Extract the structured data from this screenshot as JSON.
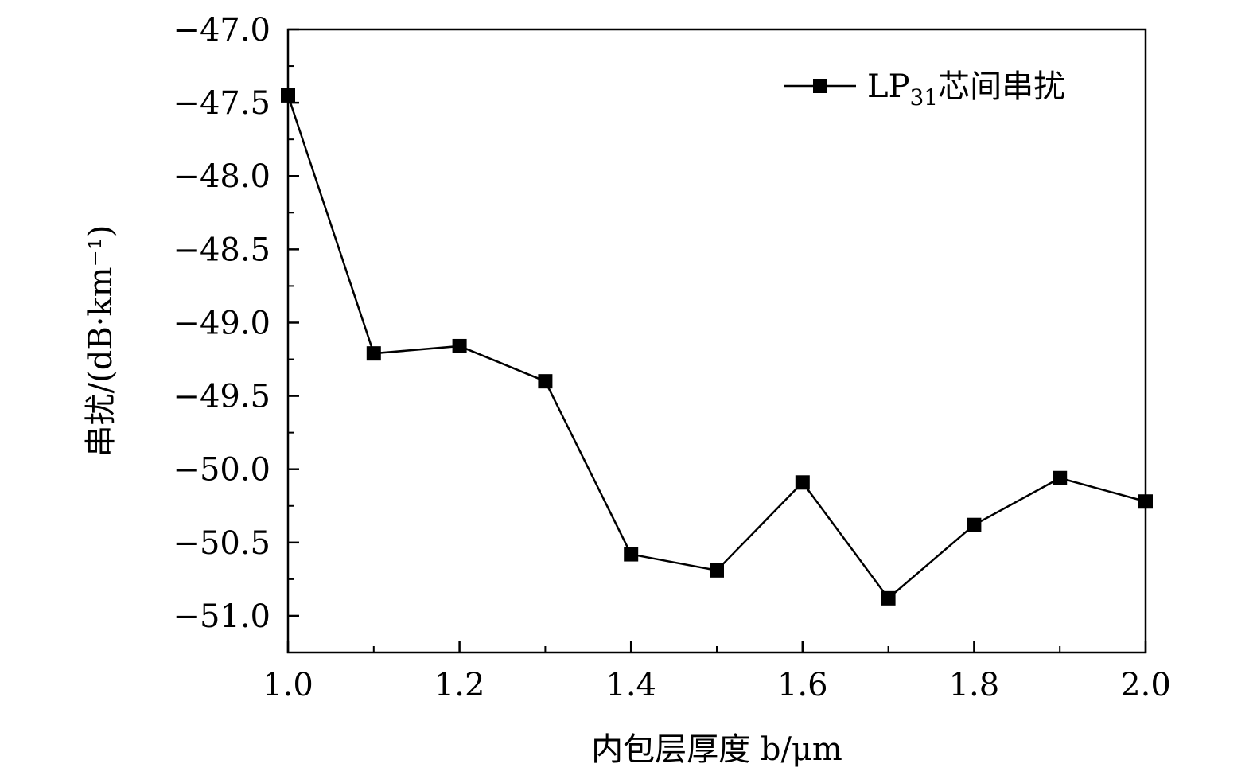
{
  "chart_data": {
    "type": "line",
    "title": "",
    "xlabel": "内包层厚度 b/μm",
    "ylabel": "串扰/(dB·km⁻¹)",
    "xlim": [
      1.0,
      2.0
    ],
    "ylim": [
      -51.25,
      -47.0
    ],
    "x_ticks": [
      1.0,
      1.2,
      1.4,
      1.6,
      1.8,
      2.0
    ],
    "x_tick_labels": [
      "1.0",
      "1.2",
      "1.4",
      "1.6",
      "1.8",
      "2.0"
    ],
    "y_ticks": [
      -47.0,
      -47.5,
      -48.0,
      -48.5,
      -49.0,
      -49.5,
      -50.0,
      -50.5,
      -51.0
    ],
    "y_tick_labels": [
      "−47.0",
      "−47.5",
      "−48.0",
      "−48.5",
      "−49.0",
      "−49.5",
      "−50.0",
      "−50.5",
      "−51.0"
    ],
    "grid": false,
    "legend_position": "top-right",
    "series": [
      {
        "name": "LP31芯间串扰",
        "name_main": "LP",
        "name_sub": "31",
        "name_tail": "芯间串扰",
        "color": "#000000",
        "marker": "square",
        "x": [
          1.0,
          1.1,
          1.2,
          1.3,
          1.4,
          1.5,
          1.6,
          1.7,
          1.8,
          1.9,
          2.0
        ],
        "y": [
          -47.45,
          -49.21,
          -49.16,
          -49.4,
          -50.58,
          -50.69,
          -50.09,
          -50.88,
          -50.38,
          -50.06,
          -50.22
        ]
      }
    ]
  }
}
